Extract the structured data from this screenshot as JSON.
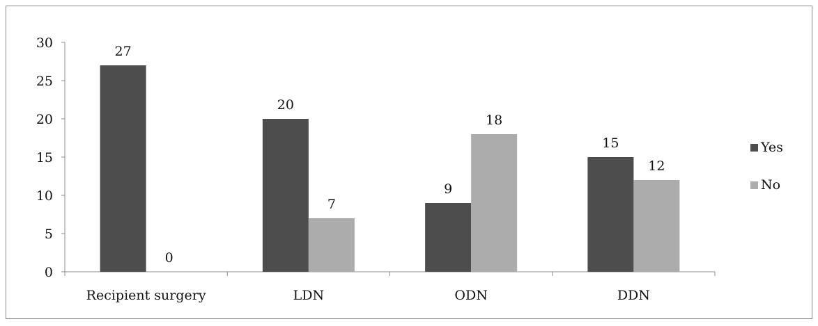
{
  "chart_data": {
    "type": "bar",
    "categories": [
      "Recipient surgery",
      "LDN",
      "ODN",
      "DDN"
    ],
    "series": [
      {
        "name": "Yes",
        "values": [
          27,
          20,
          9,
          15
        ],
        "color": "#4d4d4d"
      },
      {
        "name": "No",
        "values": [
          0,
          7,
          18,
          12
        ],
        "color": "#acacac"
      }
    ],
    "yticks": [
      0,
      5,
      10,
      15,
      20,
      25,
      30
    ],
    "ylim": [
      0,
      30
    ],
    "legend_position": "right",
    "grid": false
  }
}
